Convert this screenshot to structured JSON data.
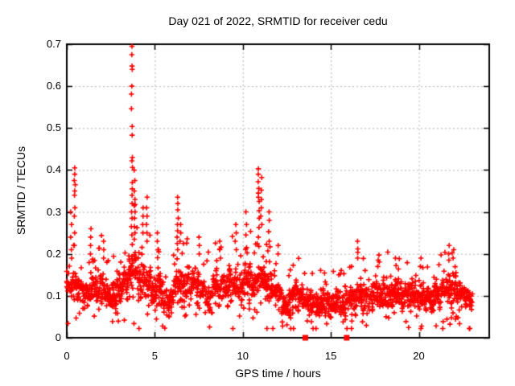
{
  "window": {
    "background": "#ffffff"
  },
  "chart_data": {
    "type": "scatter",
    "title": "Day 021 of 2022, SRMTID for receiver cedu",
    "xlabel": "GPS time / hours",
    "ylabel": "SRMTID / TECUs",
    "xlim": [
      0,
      24
    ],
    "ylim": [
      0,
      0.7
    ],
    "xticks": [
      0,
      5,
      10,
      15,
      20
    ],
    "yticks": [
      0,
      0.1,
      0.2,
      0.3,
      0.4,
      0.5,
      0.6,
      0.7
    ],
    "grid": true,
    "legend": "none",
    "marker": "plus",
    "marker_color": "#ff0000",
    "marker_size_px": 7,
    "grid_color": "#b4b4b4",
    "axis_color": "#000000",
    "series_name": "SRMTID",
    "data_x_start": 0,
    "data_x_end": 23.05,
    "band_profile": {
      "description": "dense scatter band: [x_hours, center_TECU, spread_TECU]",
      "keyframes": [
        [
          0.0,
          0.13,
          0.035
        ],
        [
          0.5,
          0.12,
          0.04
        ],
        [
          1.0,
          0.1,
          0.03
        ],
        [
          1.5,
          0.12,
          0.038
        ],
        [
          2.0,
          0.125,
          0.04
        ],
        [
          2.5,
          0.1,
          0.03
        ],
        [
          3.0,
          0.11,
          0.032
        ],
        [
          3.5,
          0.14,
          0.045
        ],
        [
          3.8,
          0.165,
          0.06
        ],
        [
          4.2,
          0.15,
          0.05
        ],
        [
          4.7,
          0.125,
          0.04
        ],
        [
          5.2,
          0.115,
          0.04
        ],
        [
          5.7,
          0.08,
          0.03
        ],
        [
          6.3,
          0.14,
          0.05
        ],
        [
          6.8,
          0.115,
          0.04
        ],
        [
          7.3,
          0.125,
          0.04
        ],
        [
          7.9,
          0.1,
          0.035
        ],
        [
          8.5,
          0.115,
          0.038
        ],
        [
          9.0,
          0.125,
          0.04
        ],
        [
          9.6,
          0.12,
          0.04
        ],
        [
          10.1,
          0.135,
          0.042
        ],
        [
          10.6,
          0.13,
          0.04
        ],
        [
          11.0,
          0.14,
          0.05
        ],
        [
          11.5,
          0.12,
          0.04
        ],
        [
          12.0,
          0.1,
          0.035
        ],
        [
          12.5,
          0.085,
          0.03
        ],
        [
          13.0,
          0.1,
          0.032
        ],
        [
          13.5,
          0.09,
          0.03
        ],
        [
          14.0,
          0.085,
          0.03
        ],
        [
          14.5,
          0.08,
          0.026
        ],
        [
          15.0,
          0.08,
          0.026
        ],
        [
          15.5,
          0.085,
          0.028
        ],
        [
          16.0,
          0.09,
          0.03
        ],
        [
          16.5,
          0.108,
          0.034
        ],
        [
          17.0,
          0.09,
          0.03
        ],
        [
          17.5,
          0.1,
          0.032
        ],
        [
          18.0,
          0.1,
          0.034
        ],
        [
          18.7,
          0.108,
          0.035
        ],
        [
          19.3,
          0.09,
          0.03
        ],
        [
          20.0,
          0.1,
          0.034
        ],
        [
          20.7,
          0.09,
          0.03
        ],
        [
          21.3,
          0.108,
          0.035
        ],
        [
          21.8,
          0.125,
          0.04
        ],
        [
          22.3,
          0.11,
          0.035
        ],
        [
          23.0,
          0.095,
          0.03
        ]
      ],
      "epoch_step_hours": 0.024,
      "max_points_per_epoch": 3,
      "seed": 20220121
    },
    "peak_columns": [
      {
        "x": 0.25,
        "values": [
          0.3,
          0.27,
          0.24,
          0.21,
          0.19
        ]
      },
      {
        "x": 0.45,
        "values": [
          0.405,
          0.39,
          0.375,
          0.365,
          0.35,
          0.34,
          0.31,
          0.29,
          0.25,
          0.22
        ]
      },
      {
        "x": 1.35,
        "values": [
          0.26,
          0.24,
          0.22,
          0.2
        ]
      },
      {
        "x": 2.1,
        "values": [
          0.23,
          0.21,
          0.19
        ]
      },
      {
        "x": 3.7,
        "values": [
          0.695,
          0.675,
          0.648,
          0.64,
          0.6,
          0.581,
          0.546,
          0.504,
          0.483,
          0.43,
          0.422,
          0.406,
          0.37,
          0.355,
          0.34,
          0.32,
          0.3,
          0.285,
          0.265,
          0.245
        ]
      },
      {
        "x": 3.85,
        "values": [
          0.4,
          0.375,
          0.35,
          0.33,
          0.315,
          0.3,
          0.285,
          0.265,
          0.25,
          0.235
        ]
      },
      {
        "x": 4.3,
        "values": [
          0.31,
          0.29,
          0.27,
          0.25
        ]
      },
      {
        "x": 4.55,
        "values": [
          0.335,
          0.31,
          0.29,
          0.27,
          0.25,
          0.23
        ]
      },
      {
        "x": 5.15,
        "values": [
          0.25,
          0.23,
          0.21
        ]
      },
      {
        "x": 6.3,
        "values": [
          0.335,
          0.32,
          0.305,
          0.285,
          0.27,
          0.255,
          0.24,
          0.225,
          0.21
        ]
      },
      {
        "x": 6.45,
        "values": [
          0.27,
          0.25,
          0.23
        ]
      },
      {
        "x": 7.5,
        "values": [
          0.24,
          0.22,
          0.2
        ]
      },
      {
        "x": 8.7,
        "values": [
          0.23,
          0.21,
          0.19
        ]
      },
      {
        "x": 9.6,
        "values": [
          0.27,
          0.25,
          0.23,
          0.21
        ]
      },
      {
        "x": 10.2,
        "values": [
          0.3,
          0.27,
          0.245,
          0.215
        ]
      },
      {
        "x": 10.9,
        "values": [
          0.403,
          0.39,
          0.372,
          0.356,
          0.345,
          0.335,
          0.325,
          0.303,
          0.285,
          0.263,
          0.24,
          0.218
        ]
      },
      {
        "x": 11.05,
        "values": [
          0.382,
          0.352,
          0.33,
          0.31,
          0.29,
          0.27
        ]
      },
      {
        "x": 11.5,
        "values": [
          0.3,
          0.28,
          0.253,
          0.23
        ]
      },
      {
        "x": 12.0,
        "values": [
          0.22,
          0.2
        ]
      },
      {
        "x": 16.55,
        "values": [
          0.23,
          0.212,
          0.19
        ]
      },
      {
        "x": 17.7,
        "values": [
          0.185,
          0.17
        ]
      },
      {
        "x": 18.7,
        "values": [
          0.19,
          0.172
        ]
      },
      {
        "x": 20.1,
        "values": [
          0.19,
          0.17
        ]
      },
      {
        "x": 21.7,
        "values": [
          0.22,
          0.2,
          0.185
        ]
      },
      {
        "x": 21.95,
        "values": [
          0.21,
          0.19
        ]
      }
    ],
    "zero_markers": {
      "shape": "filled-square",
      "color": "#ff0000",
      "points": [
        {
          "x": 13.55,
          "y": 0
        },
        {
          "x": 15.9,
          "y": 0
        }
      ]
    }
  }
}
